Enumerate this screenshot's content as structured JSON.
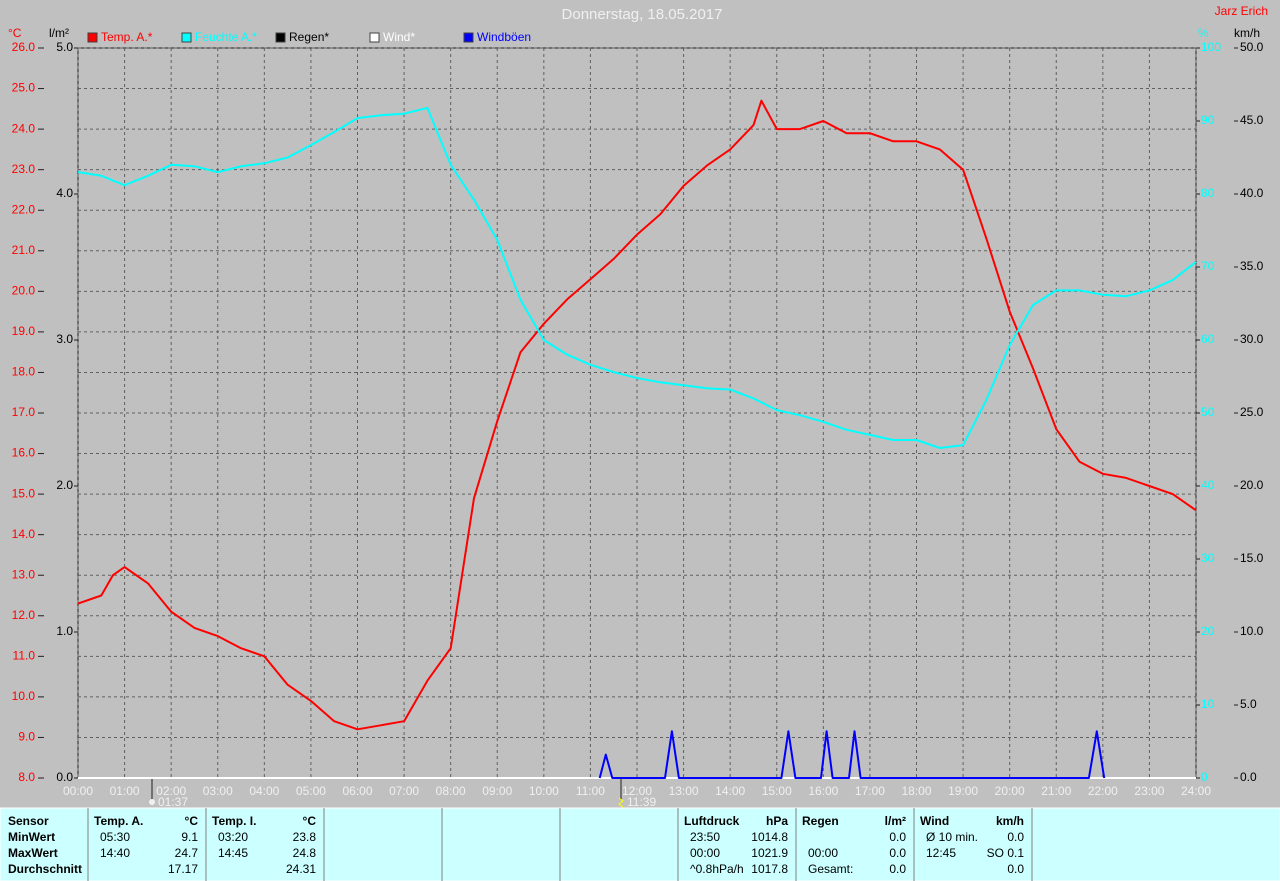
{
  "chart_data": {
    "type": "line",
    "title": "Donnerstag, 18.05.2017",
    "author": "Jarz Erich",
    "y_unit": "°C",
    "y3_unit": "l/m²",
    "y2_unit": "%",
    "y4_unit": "km/h",
    "xlim": [
      0,
      24
    ],
    "xticks": [
      {
        "value": 0,
        "label": "00:00"
      },
      {
        "value": 1,
        "label": "01:00"
      },
      {
        "value": 2,
        "label": "02:00"
      },
      {
        "value": 3,
        "label": "03:00"
      },
      {
        "value": 4,
        "label": "04:00"
      },
      {
        "value": 5,
        "label": "05:00"
      },
      {
        "value": 6,
        "label": "06:00"
      },
      {
        "value": 7,
        "label": "07:00"
      },
      {
        "value": 8,
        "label": "08:00"
      },
      {
        "value": 9,
        "label": "09:00"
      },
      {
        "value": 10,
        "label": "10:00"
      },
      {
        "value": 11,
        "label": "11:00"
      },
      {
        "value": 12,
        "label": "12:00"
      },
      {
        "value": 13,
        "label": "13:00"
      },
      {
        "value": 14,
        "label": "14:00"
      },
      {
        "value": 15,
        "label": "15:00"
      },
      {
        "value": 16,
        "label": "16:00"
      },
      {
        "value": 17,
        "label": "17:00"
      },
      {
        "value": 18,
        "label": "18:00"
      },
      {
        "value": 19,
        "label": "19:00"
      },
      {
        "value": 20,
        "label": "20:00"
      },
      {
        "value": 21,
        "label": "21:00"
      },
      {
        "value": 22,
        "label": "22:00"
      },
      {
        "value": 23,
        "label": "23:00"
      },
      {
        "value": 24,
        "label": "24:00"
      }
    ],
    "ylim": [
      8,
      26
    ],
    "yticks": [
      {
        "value": 8,
        "label": "8.0"
      },
      {
        "value": 9,
        "label": "9.0"
      },
      {
        "value": 10,
        "label": "10.0"
      },
      {
        "value": 11,
        "label": "11.0"
      },
      {
        "value": 12,
        "label": "12.0"
      },
      {
        "value": 13,
        "label": "13.0"
      },
      {
        "value": 14,
        "label": "14.0"
      },
      {
        "value": 15,
        "label": "15.0"
      },
      {
        "value": 16,
        "label": "16.0"
      },
      {
        "value": 17,
        "label": "17.0"
      },
      {
        "value": 18,
        "label": "18.0"
      },
      {
        "value": 19,
        "label": "19.0"
      },
      {
        "value": 20,
        "label": "20.0"
      },
      {
        "value": 21,
        "label": "21.0"
      },
      {
        "value": 22,
        "label": "22.0"
      },
      {
        "value": 23,
        "label": "23.0"
      },
      {
        "value": 24,
        "label": "24.0"
      },
      {
        "value": 25,
        "label": "25.0"
      },
      {
        "value": 26,
        "label": "26.0"
      }
    ],
    "y2lim": [
      0,
      100
    ],
    "y2ticks": [
      0,
      10,
      20,
      30,
      40,
      50,
      60,
      70,
      80,
      90,
      100
    ],
    "y3lim": [
      0,
      5
    ],
    "y3ticks": [
      {
        "value": 0,
        "label": "0.0"
      },
      {
        "value": 1,
        "label": "1.0"
      },
      {
        "value": 2,
        "label": "2.0"
      },
      {
        "value": 3,
        "label": "3.0"
      },
      {
        "value": 4,
        "label": "4.0"
      },
      {
        "value": 5,
        "label": "5.0"
      }
    ],
    "y4lim": [
      0,
      50
    ],
    "y4ticks": [
      {
        "value": 0,
        "label": "0.0"
      },
      {
        "value": 5,
        "label": "5.0"
      },
      {
        "value": 10,
        "label": "10.0"
      },
      {
        "value": 15,
        "label": "15.0"
      },
      {
        "value": 20,
        "label": "20.0"
      },
      {
        "value": 25,
        "label": "25.0"
      },
      {
        "value": 30,
        "label": "30.0"
      },
      {
        "value": 35,
        "label": "35.0"
      },
      {
        "value": 40,
        "label": "40.0"
      },
      {
        "value": 45,
        "label": "45.0"
      },
      {
        "value": 50,
        "label": "50.0"
      }
    ],
    "grid": true,
    "series": [
      {
        "name": "Temp. A.*",
        "color": "#ff0000",
        "axis": "y",
        "x": [
          0,
          0.5,
          0.75,
          1,
          1.5,
          2,
          2.5,
          3,
          3.5,
          4,
          4.5,
          5,
          5.5,
          6,
          6.5,
          7,
          7.5,
          8,
          8.5,
          9,
          9.5,
          10,
          10.5,
          11,
          11.5,
          12,
          12.5,
          13,
          13.5,
          14,
          14.5,
          14.67,
          15,
          15.5,
          16,
          16.5,
          17,
          17.5,
          18,
          18.5,
          19,
          19.5,
          20,
          20.5,
          21,
          21.5,
          22,
          22.5,
          23,
          23.5,
          24
        ],
        "values": [
          12.3,
          12.5,
          13.0,
          13.2,
          12.8,
          12.1,
          11.7,
          11.5,
          11.2,
          11.0,
          10.3,
          9.9,
          9.4,
          9.2,
          9.3,
          9.4,
          10.4,
          11.2,
          14.9,
          16.8,
          18.5,
          19.2,
          19.8,
          20.3,
          20.8,
          21.4,
          21.9,
          22.6,
          23.1,
          23.5,
          24.1,
          24.7,
          24.0,
          24.0,
          24.2,
          23.9,
          23.9,
          23.7,
          23.7,
          23.5,
          23.0,
          21.3,
          19.5,
          18.1,
          16.6,
          15.8,
          15.5,
          15.4,
          15.2,
          15.0,
          14.6
        ]
      },
      {
        "name": "Feuchte A.*",
        "color": "#00ffff",
        "axis": "y2",
        "x": [
          0,
          0.5,
          1,
          1.5,
          2,
          2.5,
          3,
          3.5,
          4,
          4.5,
          5,
          5.5,
          6,
          6.5,
          7,
          7.5,
          8,
          8.5,
          9,
          9.5,
          10,
          10.5,
          11,
          11.5,
          12,
          12.5,
          13,
          13.5,
          14,
          14.5,
          15,
          15.5,
          16,
          16.5,
          17,
          17.5,
          18,
          18.5,
          19,
          19.5,
          20,
          20.5,
          21,
          21.5,
          22,
          22.5,
          23,
          23.5,
          24
        ],
        "values": [
          83.0,
          82.5,
          81.2,
          82.5,
          84.0,
          83.8,
          83.0,
          83.8,
          84.2,
          85.0,
          86.7,
          88.5,
          90.4,
          90.8,
          91.0,
          91.8,
          84.0,
          79.2,
          73.7,
          65.5,
          60.0,
          58.0,
          56.6,
          55.6,
          54.8,
          54.2,
          53.8,
          53.4,
          53.2,
          52.0,
          50.4,
          49.7,
          48.8,
          47.7,
          47.0,
          46.3,
          46.3,
          45.2,
          45.6,
          51.8,
          59.3,
          64.8,
          66.8,
          66.8,
          66.2,
          66.0,
          66.8,
          68.2,
          70.7
        ]
      },
      {
        "name": "Regen*",
        "color": "#000000",
        "axis": "y3",
        "x": [
          0,
          24
        ],
        "values": [
          0,
          0
        ]
      },
      {
        "name": "Wind*",
        "color": "#ffffff",
        "axis": "y4",
        "x": [
          0,
          24
        ],
        "values": [
          0,
          0
        ]
      },
      {
        "name": "Windböen",
        "color": "#0000ff",
        "axis": "y4",
        "x": [
          11.2,
          11.33,
          11.47,
          12.6,
          12.75,
          12.9,
          15.1,
          15.25,
          15.4,
          15.95,
          16.07,
          16.2,
          16.55,
          16.67,
          16.8,
          21.7,
          21.87,
          22.03
        ],
        "values": [
          0,
          1.6,
          0,
          0,
          3.2,
          0,
          0,
          3.2,
          0,
          0,
          3.2,
          0,
          0,
          3.2,
          0,
          0,
          3.2,
          0
        ]
      }
    ],
    "annotations": [
      "01:37",
      "11:39"
    ]
  },
  "summary": {
    "sensor_labels": [
      "Sensor",
      "MinWert",
      "MaxWert",
      "Durchschnitt"
    ],
    "blocks": [
      {
        "title": "Temp. A.",
        "unit": "°C",
        "rows": [
          [
            "05:30",
            "9.1"
          ],
          [
            "14:40",
            "24.7"
          ],
          [
            null,
            "17.17"
          ]
        ]
      },
      {
        "title": "Temp. I.",
        "unit": "°C",
        "rows": [
          [
            "03:20",
            "23.8"
          ],
          [
            "14:45",
            "24.8"
          ],
          [
            null,
            "24.31"
          ]
        ]
      },
      {
        "title": "Luftdruck",
        "unit": "hPa",
        "rows": [
          [
            "23:50",
            "1014.8"
          ],
          [
            "00:00",
            "1021.9"
          ],
          [
            "^0.8hPa/h",
            "1017.8"
          ]
        ]
      },
      {
        "title": "Regen",
        "unit": "l/m²",
        "rows": [
          [
            null,
            "0.0"
          ],
          [
            "00:00",
            "0.0"
          ],
          [
            "Gesamt:",
            "0.0"
          ]
        ]
      },
      {
        "title": "Wind",
        "unit": "km/h",
        "rows": [
          [
            "Ø 10 min.",
            "0.0"
          ],
          [
            "12:45",
            "SO 0.1"
          ],
          [
            null,
            "0.0"
          ]
        ]
      }
    ]
  }
}
